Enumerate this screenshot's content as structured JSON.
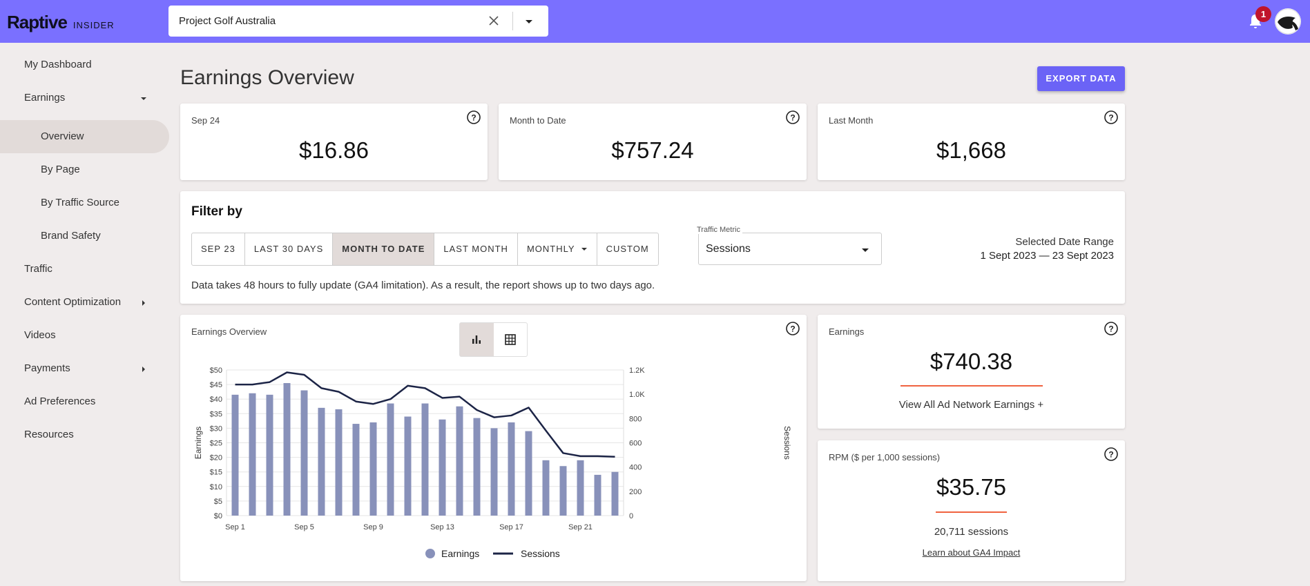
{
  "header": {
    "logo_main": "Raptive",
    "logo_sub": "INSIDER",
    "site_name": "Project Golf Australia",
    "notification_count": "1"
  },
  "sidebar": {
    "items": [
      {
        "label": "My Dashboard"
      },
      {
        "label": "Earnings"
      },
      {
        "label": "Overview"
      },
      {
        "label": "By Page"
      },
      {
        "label": "By Traffic Source"
      },
      {
        "label": "Brand Safety"
      },
      {
        "label": "Traffic"
      },
      {
        "label": "Content Optimization"
      },
      {
        "label": "Videos"
      },
      {
        "label": "Payments"
      },
      {
        "label": "Ad Preferences"
      },
      {
        "label": "Resources"
      }
    ]
  },
  "page": {
    "title": "Earnings Overview",
    "export_label": "EXPORT DATA"
  },
  "summary": [
    {
      "label": "Sep 24",
      "value": "$16.86"
    },
    {
      "label": "Month to Date",
      "value": "$757.24"
    },
    {
      "label": "Last Month",
      "value": "$1,668"
    }
  ],
  "filter": {
    "title": "Filter by",
    "buttons": [
      "SEP 23",
      "LAST 30 DAYS",
      "MONTH TO DATE",
      "LAST MONTH",
      "MONTHLY",
      "CUSTOM"
    ],
    "active_button": "MONTH TO DATE",
    "metric_label": "Traffic Metric",
    "metric_value": "Sessions",
    "date_range_label": "Selected Date Range",
    "date_range_value": "1 Sept 2023 — 23 Sept 2023",
    "note": "Data takes 48 hours to fully update (GA4 limitation). As a result, the report shows up to two days ago."
  },
  "chart_card": {
    "label": "Earnings Overview",
    "view_toggle": [
      "bar-chart-icon",
      "table-icon"
    ]
  },
  "earnings_card": {
    "label": "Earnings",
    "value": "$740.38",
    "link": "View All Ad Network Earnings +"
  },
  "rpm_card": {
    "label": "RPM ($ per 1,000 sessions)",
    "value": "$35.75",
    "sessions": "20,711 sessions",
    "link": "Learn about GA4 Impact"
  },
  "colors": {
    "accent": "#7a70ff",
    "button": "#6b63f6",
    "bar": "#8891ba",
    "line": "#1c2446",
    "underline": "#f0623f",
    "badge": "#c0142c"
  },
  "chart_data": {
    "type": "bar",
    "categories": [
      "Sep 1",
      "Sep 2",
      "Sep 3",
      "Sep 4",
      "Sep 5",
      "Sep 6",
      "Sep 7",
      "Sep 8",
      "Sep 9",
      "Sep 10",
      "Sep 11",
      "Sep 12",
      "Sep 13",
      "Sep 14",
      "Sep 15",
      "Sep 16",
      "Sep 17",
      "Sep 18",
      "Sep 19",
      "Sep 20",
      "Sep 21",
      "Sep 22",
      "Sep 23"
    ],
    "x_tick_labels": [
      "Sep 1",
      "Sep 5",
      "Sep 9",
      "Sep 13",
      "Sep 17",
      "Sep 21"
    ],
    "series": [
      {
        "name": "Earnings",
        "type": "bar",
        "axis": "left",
        "values": [
          41.5,
          42,
          41.5,
          45.5,
          43,
          37,
          36.5,
          31.5,
          32,
          38.5,
          34,
          38.5,
          33,
          37.5,
          33.5,
          30,
          32,
          29,
          19,
          17,
          19,
          14,
          15
        ]
      },
      {
        "name": "Sessions",
        "type": "line",
        "axis": "right",
        "values": [
          1080,
          1080,
          1100,
          1180,
          1160,
          1050,
          1020,
          940,
          920,
          960,
          1070,
          1050,
          970,
          980,
          870,
          810,
          825,
          890,
          700,
          515,
          490,
          490,
          485
        ]
      }
    ],
    "ylabel": "Earnings",
    "ylabel_right": "Sessions",
    "ylim": [
      0,
      50
    ],
    "yticks": [
      "$0",
      "$5",
      "$10",
      "$15",
      "$20",
      "$25",
      "$30",
      "$35",
      "$40",
      "$45",
      "$50"
    ],
    "ylim_right": [
      0,
      1200
    ],
    "yticks_right": [
      "0",
      "200",
      "400",
      "600",
      "800",
      "1.0K",
      "1.2K"
    ],
    "legend": "bottom",
    "grid": true
  }
}
